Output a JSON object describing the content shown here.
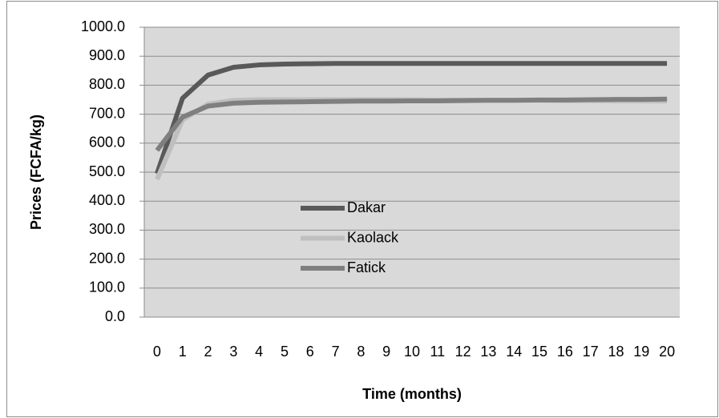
{
  "chart_data": {
    "type": "line",
    "xlabel": "Time (months)",
    "ylabel": "Prices (FCFA/kg)",
    "categories": [
      "0",
      "1",
      "2",
      "3",
      "4",
      "5",
      "6",
      "7",
      "8",
      "9",
      "10",
      "11",
      "12",
      "13",
      "14",
      "15",
      "16",
      "17",
      "18",
      "19",
      "20"
    ],
    "series": [
      {
        "name": "Dakar",
        "color": "#595959",
        "values": [
          495,
          755,
          835,
          862,
          870,
          873,
          874,
          875,
          875,
          875,
          875,
          875,
          875,
          875,
          875,
          875,
          875,
          875,
          875,
          875,
          875
        ]
      },
      {
        "name": "Kaolack",
        "color": "#bfbfbf",
        "values": [
          475,
          680,
          735,
          748,
          750,
          750,
          750,
          750,
          750,
          750,
          750,
          749,
          749,
          748,
          748,
          748,
          747,
          747,
          746,
          746,
          745
        ]
      },
      {
        "name": "Fatick",
        "color": "#7f7f7f",
        "values": [
          575,
          690,
          728,
          738,
          741,
          742,
          743,
          744,
          745,
          745,
          746,
          746,
          747,
          748,
          748,
          749,
          749,
          750,
          751,
          751,
          752
        ]
      }
    ],
    "ylim": [
      0,
      1000
    ],
    "yticks": [
      {
        "value": 0,
        "label": "0.0"
      },
      {
        "value": 100,
        "label": "100.0"
      },
      {
        "value": 200,
        "label": "200.0"
      },
      {
        "value": 300,
        "label": "300.0"
      },
      {
        "value": 400,
        "label": "400.0"
      },
      {
        "value": 500,
        "label": "500.0"
      },
      {
        "value": 600,
        "label": "600.0"
      },
      {
        "value": 700,
        "label": "700.0"
      },
      {
        "value": 800,
        "label": "800.0"
      },
      {
        "value": 900,
        "label": "900.0"
      },
      {
        "value": 1000,
        "label": "1000.0"
      }
    ],
    "grid": true
  }
}
